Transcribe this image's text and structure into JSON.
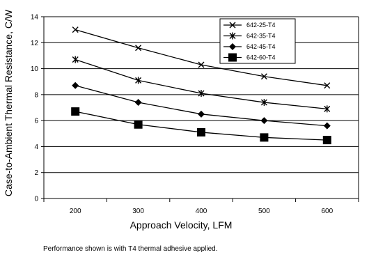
{
  "chart_data": {
    "type": "line",
    "title": "",
    "xlabel": "Approach Velocity, LFM",
    "ylabel": "Case-to-Ambient Thermal Resistance, C/W",
    "x": [
      200,
      300,
      400,
      500,
      600
    ],
    "xticks": [
      "200",
      "300",
      "400",
      "500",
      "600"
    ],
    "ylim": [
      0,
      14
    ],
    "yticks": [
      "0",
      "2",
      "4",
      "6",
      "8",
      "10",
      "12",
      "14"
    ],
    "grid": "horizontal",
    "legend_position": "top-right",
    "series": [
      {
        "name": "642-25-T4",
        "marker": "x",
        "values": [
          13.0,
          11.6,
          10.3,
          9.4,
          8.7
        ]
      },
      {
        "name": "642-35-T4",
        "marker": "asterisk",
        "values": [
          10.7,
          9.1,
          8.1,
          7.4,
          6.9
        ]
      },
      {
        "name": "642-45-T4",
        "marker": "diamond",
        "values": [
          8.7,
          7.4,
          6.5,
          6.0,
          5.6
        ]
      },
      {
        "name": "642-60-T4",
        "marker": "square",
        "values": [
          6.7,
          5.7,
          5.1,
          4.7,
          4.5
        ]
      }
    ],
    "note": "Performance shown is with T4 thermal adhesive applied."
  }
}
